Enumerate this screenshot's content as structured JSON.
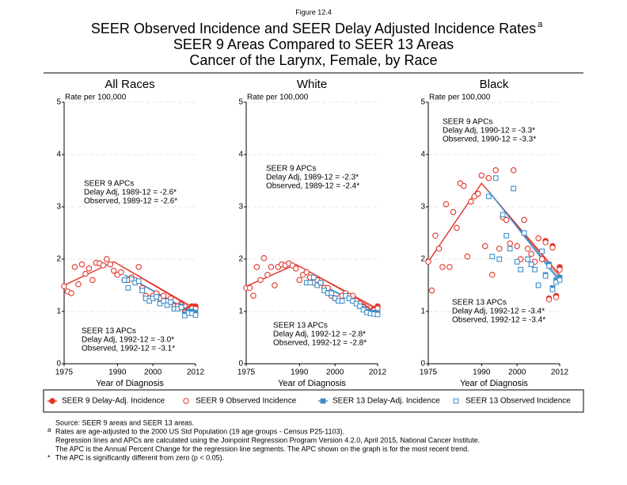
{
  "figure_label": "Figure 12.4",
  "title": "SEER Observed Incidence and SEER Delay Adjusted Incidence Rates",
  "title_sup": "a",
  "subtitle": [
    "SEER 9 Areas Compared to SEER 13 Areas",
    "Cancer of the Larynx, Female, by Race"
  ],
  "legend": [
    {
      "name": "SEER 9 Delay-Adj. Incidence",
      "color": "#e0352b",
      "marker": "filled-circle"
    },
    {
      "name": "SEER 9 Observed Incidence",
      "color": "#e0352b",
      "marker": "open-circle"
    },
    {
      "name": "SEER 13 Delay-Adj. Incidence",
      "color": "#3a8cc8",
      "marker": "filled-square"
    },
    {
      "name": "SEER 13 Observed Incidence",
      "color": "#3a8cc8",
      "marker": "open-square"
    }
  ],
  "chart_data": [
    {
      "type": "scatter",
      "title": "All Races",
      "y_label": "Rate per 100,000",
      "x_label": "Year of Diagnosis",
      "xlim": [
        1975,
        2012
      ],
      "xticks": [
        1975,
        1990,
        2000,
        2012
      ],
      "ylim": [
        0,
        5
      ],
      "yticks": [
        0,
        1,
        2,
        3,
        4,
        5
      ],
      "grid": true,
      "series": [
        {
          "x": [
            1975,
            1976,
            1977,
            1978,
            1979,
            1980,
            1981,
            1982,
            1983,
            1984,
            1985,
            1986,
            1987,
            1988,
            1989,
            1990,
            1991,
            1992,
            1993,
            1994,
            1995,
            1996,
            1997,
            1998,
            1999,
            2000,
            2001,
            2002,
            2003,
            2004,
            2005,
            2006,
            2007,
            2008,
            2009,
            2010,
            2011,
            2012
          ],
          "values": [
            1.48,
            1.38,
            1.35,
            1.85,
            1.52,
            1.9,
            1.72,
            1.82,
            1.6,
            1.93,
            1.92,
            1.88,
            2.0,
            1.9,
            1.78,
            1.7,
            1.75,
            1.6,
            1.6,
            1.65,
            1.6,
            1.85,
            1.45,
            1.3,
            1.25,
            1.3,
            1.35,
            1.25,
            1.3,
            1.2,
            1.25,
            1.1,
            1.1,
            1.15,
            1.0,
            1.05,
            1.1,
            1.1
          ]
        },
        {
          "x": [
            1975,
            1976,
            1977,
            1978,
            1979,
            1980,
            1981,
            1982,
            1983,
            1984,
            1985,
            1986,
            1987,
            1988,
            1989,
            1990,
            1991,
            1992,
            1993,
            1994,
            1995,
            1996,
            1997,
            1998,
            1999,
            2000,
            2001,
            2002,
            2003,
            2004,
            2005,
            2006,
            2007,
            2008,
            2009,
            2010,
            2011,
            2012
          ],
          "values": [
            1.48,
            1.38,
            1.35,
            1.85,
            1.52,
            1.9,
            1.72,
            1.82,
            1.6,
            1.93,
            1.92,
            1.88,
            2.0,
            1.9,
            1.78,
            1.7,
            1.75,
            1.6,
            1.6,
            1.65,
            1.6,
            1.85,
            1.45,
            1.3,
            1.25,
            1.3,
            1.35,
            1.25,
            1.3,
            1.2,
            1.25,
            1.1,
            1.1,
            1.13,
            0.98,
            1.02,
            1.06,
            1.05
          ]
        },
        {
          "x": [
            1992,
            1993,
            1994,
            1995,
            1996,
            1997,
            1998,
            1999,
            2000,
            2001,
            2002,
            2003,
            2004,
            2005,
            2006,
            2007,
            2008,
            2009,
            2010,
            2011,
            2012
          ],
          "values": [
            1.6,
            1.45,
            1.62,
            1.55,
            1.58,
            1.4,
            1.25,
            1.2,
            1.25,
            1.28,
            1.15,
            1.2,
            1.12,
            1.18,
            1.05,
            1.05,
            1.1,
            0.95,
            1.0,
            1.0,
            0.98
          ]
        },
        {
          "x": [
            1992,
            1993,
            1994,
            1995,
            1996,
            1997,
            1998,
            1999,
            2000,
            2001,
            2002,
            2003,
            2004,
            2005,
            2006,
            2007,
            2008,
            2009,
            2010,
            2011,
            2012
          ],
          "values": [
            1.6,
            1.45,
            1.62,
            1.55,
            1.58,
            1.4,
            1.25,
            1.2,
            1.25,
            1.28,
            1.15,
            1.2,
            1.12,
            1.18,
            1.05,
            1.05,
            1.08,
            0.92,
            0.97,
            0.96,
            0.93
          ]
        }
      ],
      "fits": [
        {
          "x": [
            1975,
            1989,
            2012
          ],
          "values": [
            1.5,
            1.95,
            1.05
          ]
        },
        {
          "x": [
            1975,
            1989,
            2012
          ],
          "values": [
            1.5,
            1.95,
            1.02
          ]
        },
        {
          "x": [
            1992,
            2012
          ],
          "values": [
            1.7,
            0.95
          ]
        },
        {
          "x": [
            1992,
            2012
          ],
          "values": [
            1.7,
            0.92
          ]
        }
      ],
      "annotations": [
        {
          "color": "#e0352b",
          "lines": [
            "SEER 9 APCs",
            "Delay Adj, 1989-12 = -2.6*",
            "Observed, 1989-12 = -2.6*"
          ]
        },
        {
          "color": "#3a8cc8",
          "lines": [
            "SEER 13 APCs",
            "Delay Adj, 1992-12 = -3.0*",
            "Observed, 1992-12 = -3.1*"
          ]
        }
      ]
    },
    {
      "type": "scatter",
      "title": "White",
      "y_label": "Rate per 100,000",
      "x_label": "Year of Diagnosis",
      "xlim": [
        1975,
        2012
      ],
      "xticks": [
        1975,
        1990,
        2000,
        2012
      ],
      "ylim": [
        0,
        5
      ],
      "yticks": [
        0,
        1,
        2,
        3,
        4,
        5
      ],
      "grid": true,
      "series": [
        {
          "x": [
            1975,
            1976,
            1977,
            1978,
            1979,
            1980,
            1981,
            1982,
            1983,
            1984,
            1985,
            1986,
            1987,
            1988,
            1989,
            1990,
            1991,
            1992,
            1993,
            1994,
            1995,
            1996,
            1997,
            1998,
            1999,
            2000,
            2001,
            2002,
            2003,
            2004,
            2005,
            2006,
            2007,
            2008,
            2009,
            2010,
            2011,
            2012
          ],
          "values": [
            1.45,
            1.45,
            1.3,
            1.85,
            1.6,
            2.02,
            1.7,
            1.85,
            1.5,
            1.85,
            1.9,
            1.88,
            1.92,
            1.88,
            1.82,
            1.6,
            1.7,
            1.75,
            1.65,
            1.55,
            1.6,
            1.55,
            1.45,
            1.45,
            1.3,
            1.25,
            1.25,
            1.3,
            1.35,
            1.3,
            1.3,
            1.2,
            1.15,
            1.1,
            1.05,
            1.0,
            1.05,
            1.1
          ]
        },
        {
          "x": [
            1975,
            1976,
            1977,
            1978,
            1979,
            1980,
            1981,
            1982,
            1983,
            1984,
            1985,
            1986,
            1987,
            1988,
            1989,
            1990,
            1991,
            1992,
            1993,
            1994,
            1995,
            1996,
            1997,
            1998,
            1999,
            2000,
            2001,
            2002,
            2003,
            2004,
            2005,
            2006,
            2007,
            2008,
            2009,
            2010,
            2011,
            2012
          ],
          "values": [
            1.45,
            1.45,
            1.3,
            1.85,
            1.6,
            2.02,
            1.7,
            1.85,
            1.5,
            1.85,
            1.9,
            1.88,
            1.92,
            1.88,
            1.82,
            1.6,
            1.7,
            1.75,
            1.65,
            1.55,
            1.6,
            1.55,
            1.45,
            1.45,
            1.3,
            1.25,
            1.25,
            1.3,
            1.35,
            1.3,
            1.3,
            1.2,
            1.15,
            1.08,
            1.03,
            0.98,
            1.02,
            1.06
          ]
        },
        {
          "x": [
            1992,
            1993,
            1994,
            1995,
            1996,
            1997,
            1998,
            1999,
            2000,
            2001,
            2002,
            2003,
            2004,
            2005,
            2006,
            2007,
            2008,
            2009,
            2010,
            2011,
            2012
          ],
          "values": [
            1.55,
            1.55,
            1.65,
            1.5,
            1.55,
            1.4,
            1.35,
            1.35,
            1.25,
            1.2,
            1.2,
            1.3,
            1.25,
            1.2,
            1.15,
            1.1,
            1.05,
            1.0,
            0.98,
            0.98,
            0.97
          ]
        },
        {
          "x": [
            1992,
            1993,
            1994,
            1995,
            1996,
            1997,
            1998,
            1999,
            2000,
            2001,
            2002,
            2003,
            2004,
            2005,
            2006,
            2007,
            2008,
            2009,
            2010,
            2011,
            2012
          ],
          "values": [
            1.55,
            1.55,
            1.65,
            1.5,
            1.55,
            1.4,
            1.35,
            1.35,
            1.25,
            1.2,
            1.2,
            1.3,
            1.25,
            1.2,
            1.15,
            1.1,
            1.03,
            0.98,
            0.96,
            0.95,
            0.94
          ]
        }
      ],
      "fits": [
        {
          "x": [
            1975,
            1989,
            2012
          ],
          "values": [
            1.48,
            1.9,
            1.05
          ]
        },
        {
          "x": [
            1975,
            1989,
            2012
          ],
          "values": [
            1.48,
            1.9,
            1.02
          ]
        },
        {
          "x": [
            1992,
            2012
          ],
          "values": [
            1.65,
            0.98
          ]
        },
        {
          "x": [
            1992,
            2012
          ],
          "values": [
            1.65,
            0.95
          ]
        }
      ],
      "annotations": [
        {
          "color": "#e0352b",
          "lines": [
            "SEER 9 APCs",
            "Delay Adj, 1989-12 = -2.3*",
            "Observed, 1989-12 = -2.4*"
          ]
        },
        {
          "color": "#3a8cc8",
          "lines": [
            "SEER 13 APCs",
            "Delay Adj, 1992-12 = -2.8*",
            "Observed, 1992-12 = -2.8*"
          ]
        }
      ]
    },
    {
      "type": "scatter",
      "title": "Black",
      "y_label": "Rate per 100,000",
      "x_label": "Year of Diagnosis",
      "xlim": [
        1975,
        2012
      ],
      "xticks": [
        1975,
        1990,
        2000,
        2012
      ],
      "ylim": [
        0,
        5
      ],
      "yticks": [
        0,
        1,
        2,
        3,
        4,
        5
      ],
      "grid": true,
      "series": [
        {
          "x": [
            1975,
            1976,
            1977,
            1978,
            1979,
            1980,
            1981,
            1982,
            1983,
            1984,
            1985,
            1986,
            1987,
            1988,
            1989,
            1990,
            1991,
            1992,
            1993,
            1994,
            1995,
            1996,
            1997,
            1998,
            1999,
            2000,
            2001,
            2002,
            2003,
            2004,
            2005,
            2006,
            2007,
            2008,
            2009,
            2010,
            2011,
            2012
          ],
          "values": [
            1.95,
            1.4,
            2.45,
            2.2,
            1.85,
            3.05,
            1.85,
            2.9,
            2.6,
            3.45,
            3.4,
            2.05,
            3.1,
            3.2,
            3.25,
            3.6,
            2.25,
            3.55,
            1.7,
            3.7,
            2.2,
            2.8,
            2.75,
            2.3,
            3.7,
            2.25,
            2.0,
            2.75,
            2.2,
            2.1,
            1.95,
            2.4,
            2.0,
            2.35,
            1.25,
            2.25,
            1.3,
            1.85
          ]
        },
        {
          "x": [
            1975,
            1976,
            1977,
            1978,
            1979,
            1980,
            1981,
            1982,
            1983,
            1984,
            1985,
            1986,
            1987,
            1988,
            1989,
            1990,
            1991,
            1992,
            1993,
            1994,
            1995,
            1996,
            1997,
            1998,
            1999,
            2000,
            2001,
            2002,
            2003,
            2004,
            2005,
            2006,
            2007,
            2008,
            2009,
            2010,
            2011,
            2012
          ],
          "values": [
            1.95,
            1.4,
            2.45,
            2.2,
            1.85,
            3.05,
            1.85,
            2.9,
            2.6,
            3.45,
            3.4,
            2.05,
            3.1,
            3.2,
            3.25,
            3.6,
            2.25,
            3.55,
            1.7,
            3.7,
            2.2,
            2.8,
            2.75,
            2.3,
            3.7,
            2.25,
            2.0,
            2.75,
            2.2,
            2.1,
            1.95,
            2.4,
            2.0,
            2.32,
            1.23,
            2.22,
            1.27,
            1.8
          ]
        },
        {
          "x": [
            1992,
            1993,
            1994,
            1995,
            1996,
            1997,
            1998,
            1999,
            2000,
            2001,
            2002,
            2003,
            2004,
            2005,
            2006,
            2007,
            2008,
            2009,
            2010,
            2011,
            2012
          ],
          "values": [
            3.2,
            2.05,
            3.55,
            2.0,
            2.85,
            2.45,
            2.2,
            3.35,
            1.95,
            1.8,
            2.5,
            2.0,
            1.9,
            1.8,
            1.5,
            2.15,
            1.7,
            1.9,
            1.45,
            1.6,
            1.65
          ]
        },
        {
          "x": [
            1992,
            1993,
            1994,
            1995,
            1996,
            1997,
            1998,
            1999,
            2000,
            2001,
            2002,
            2003,
            2004,
            2005,
            2006,
            2007,
            2008,
            2009,
            2010,
            2011,
            2012
          ],
          "values": [
            3.2,
            2.05,
            3.55,
            2.0,
            2.85,
            2.45,
            2.2,
            3.35,
            1.95,
            1.8,
            2.5,
            2.0,
            1.9,
            1.8,
            1.5,
            2.15,
            1.68,
            1.87,
            1.42,
            1.56,
            1.6
          ]
        }
      ],
      "fits": [
        {
          "x": [
            1975,
            1990,
            2012
          ],
          "values": [
            1.95,
            3.45,
            1.7
          ]
        },
        {
          "x": [
            1975,
            1990,
            2012
          ],
          "values": [
            1.95,
            3.45,
            1.66
          ]
        },
        {
          "x": [
            1992,
            2012
          ],
          "values": [
            3.3,
            1.6
          ]
        },
        {
          "x": [
            1992,
            2012
          ],
          "values": [
            3.3,
            1.56
          ]
        }
      ],
      "annotations": [
        {
          "color": "#e0352b",
          "lines": [
            "SEER 9 APCs",
            "Delay Adj, 1990-12 = -3.3*",
            "Observed, 1990-12 = -3.3*"
          ]
        },
        {
          "color": "#3a8cc8",
          "lines": [
            "SEER 13 APCs",
            "Delay Adj, 1992-12 = -3.4*",
            "Observed, 1992-12 = -3.4*"
          ]
        }
      ]
    }
  ],
  "footnotes": [
    {
      "text": "Source: SEER 9 areas and SEER 13 areas."
    },
    {
      "marker": "a",
      "text": "Rates are age-adjusted to the 2000 US Std Population (19 age groups - Census P25-1103)."
    },
    {
      "text": "Regression lines and APCs are calculated using the Joinpoint Regression Program Version 4.2.0, April 2015, National Cancer Institute."
    },
    {
      "text": "The APC is the Annual Percent Change for the regression line segments. The APC shown on the graph is for the most recent trend."
    },
    {
      "marker": "*",
      "text": "The APC is significantly different from zero (p < 0.05)."
    }
  ]
}
